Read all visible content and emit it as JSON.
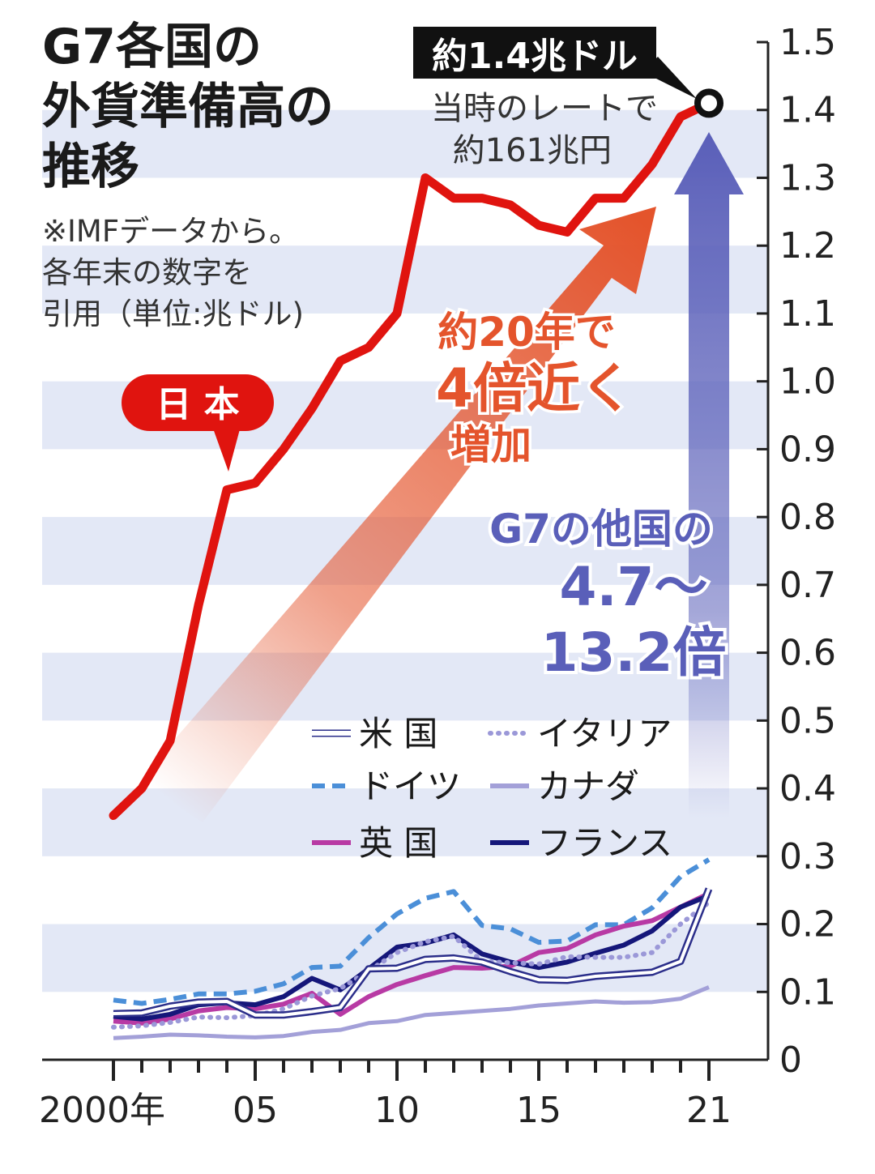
{
  "title_lines": [
    "G7各国の",
    "外貨準備高の",
    "推移"
  ],
  "note_lines": [
    "※IMFデータから。",
    "各年末の数字を",
    "引用（単位:兆ドル)"
  ],
  "callout": {
    "label": "約1.4兆ドル",
    "note_lines": [
      "当時のレートで",
      "約161兆円"
    ]
  },
  "japan_bubble": "日 本",
  "orange_annotation": [
    "約20年で",
    "4倍近く",
    "増加"
  ],
  "blue_annotation": [
    "G7の他国の",
    "4.7〜",
    "13.2倍"
  ],
  "colors": {
    "japan": "#e0140f",
    "orange_arrow": "#e4542c",
    "blue_arrow": "#5a5fb9",
    "band": "#e3e8f6"
  },
  "chart_data": {
    "type": "line",
    "x": [
      2000,
      2001,
      2002,
      2003,
      2004,
      2005,
      2006,
      2007,
      2008,
      2009,
      2010,
      2011,
      2012,
      2013,
      2014,
      2015,
      2016,
      2017,
      2018,
      2019,
      2020,
      2021
    ],
    "x_tick_values": [
      2000,
      2005,
      2010,
      2015,
      2021
    ],
    "x_tick_labels": [
      "2000年",
      "05",
      "10",
      "15",
      "21"
    ],
    "y_ticks": [
      "0",
      "0.1",
      "0.2",
      "0.3",
      "0.4",
      "0.5",
      "0.6",
      "0.7",
      "0.8",
      "0.9",
      "1.0",
      "1.1",
      "1.2",
      "1.3",
      "1.4",
      "1.5"
    ],
    "ylim": [
      0,
      1.5
    ],
    "grid": "horizontal bands",
    "series": [
      {
        "name": "日本",
        "values": [
          0.36,
          0.4,
          0.47,
          0.67,
          0.84,
          0.85,
          0.9,
          0.96,
          1.03,
          1.05,
          1.1,
          1.3,
          1.27,
          1.27,
          1.26,
          1.23,
          1.22,
          1.27,
          1.27,
          1.32,
          1.39,
          1.41
        ]
      },
      {
        "name": "米国",
        "values": [
          0.068,
          0.069,
          0.079,
          0.085,
          0.086,
          0.066,
          0.066,
          0.071,
          0.077,
          0.134,
          0.135,
          0.148,
          0.15,
          0.144,
          0.13,
          0.118,
          0.117,
          0.123,
          0.126,
          0.129,
          0.145,
          0.252
        ]
      },
      {
        "name": "イタリア",
        "values": [
          0.048,
          0.05,
          0.055,
          0.063,
          0.062,
          0.065,
          0.075,
          0.094,
          0.105,
          0.131,
          0.158,
          0.174,
          0.182,
          0.145,
          0.143,
          0.141,
          0.152,
          0.151,
          0.151,
          0.158,
          0.2,
          0.232
        ]
      },
      {
        "name": "ドイツ",
        "values": [
          0.088,
          0.083,
          0.089,
          0.097,
          0.097,
          0.101,
          0.112,
          0.136,
          0.138,
          0.18,
          0.215,
          0.238,
          0.248,
          0.198,
          0.193,
          0.173,
          0.175,
          0.199,
          0.199,
          0.224,
          0.27,
          0.295
        ]
      },
      {
        "name": "カナダ",
        "values": [
          0.032,
          0.034,
          0.037,
          0.036,
          0.034,
          0.033,
          0.035,
          0.041,
          0.044,
          0.054,
          0.057,
          0.066,
          0.069,
          0.072,
          0.075,
          0.08,
          0.083,
          0.086,
          0.084,
          0.085,
          0.09,
          0.107
        ]
      },
      {
        "name": "英国",
        "values": [
          0.057,
          0.054,
          0.06,
          0.072,
          0.077,
          0.075,
          0.082,
          0.098,
          0.067,
          0.093,
          0.111,
          0.124,
          0.136,
          0.135,
          0.138,
          0.158,
          0.164,
          0.184,
          0.197,
          0.205,
          0.225,
          0.245
        ]
      },
      {
        "name": "フランス",
        "values": [
          0.064,
          0.06,
          0.067,
          0.081,
          0.084,
          0.081,
          0.093,
          0.12,
          0.103,
          0.134,
          0.166,
          0.172,
          0.184,
          0.156,
          0.144,
          0.136,
          0.144,
          0.157,
          0.169,
          0.19,
          0.225,
          0.242
        ]
      }
    ],
    "highlight_point": {
      "series": "日本",
      "x": 2021,
      "y": 1.41
    }
  },
  "legend_style": {
    "米国": "double-line navy",
    "イタリア": "dotted lavender",
    "ドイツ": "dashed sky-blue",
    "カナダ": "solid lavender",
    "英国": "solid magenta",
    "フランス": "solid dark navy"
  }
}
